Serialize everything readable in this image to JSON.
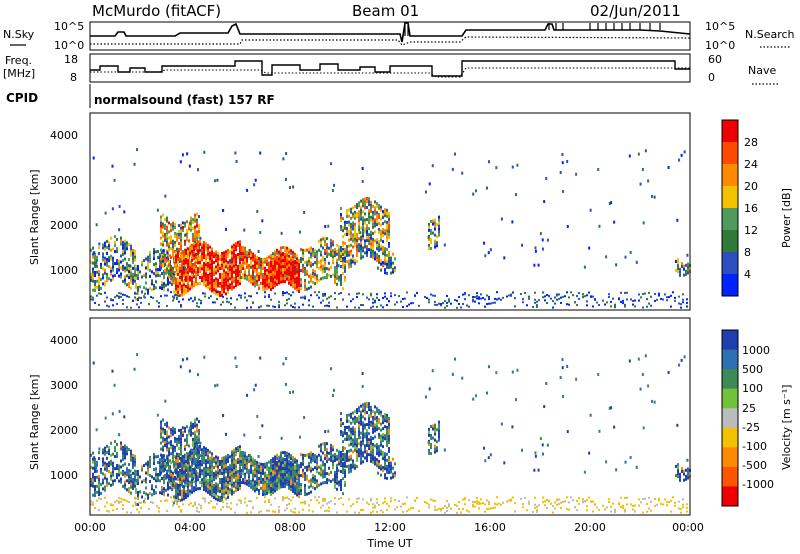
{
  "header": {
    "station": "McMurdo (fitACF)",
    "beam": "Beam 01",
    "date": "02/Jun/2011"
  },
  "noise_panel": {
    "left_label": "N.Sky",
    "right_label": "N.Search",
    "left_ticks": [
      "10^5",
      "10^0"
    ],
    "right_ticks": [
      "10^5",
      "10^0"
    ]
  },
  "freq_panel": {
    "left_label_1": "Freq.",
    "left_label_2": "[MHz]",
    "right_label": "Nave",
    "left_ticks": [
      "18",
      "8"
    ],
    "right_ticks": [
      "60",
      "0"
    ]
  },
  "cpid": {
    "label": "CPID",
    "value": "normalsound (fast) 157 RF"
  },
  "colors": {
    "power_scale": [
      "#0022ff",
      "#2b4fc0",
      "#2f7a3a",
      "#4f9a5f",
      "#f2c200",
      "#ff8a00",
      "#ff4a00",
      "#ee0000"
    ],
    "velocity_scale": [
      "#1f3fb0",
      "#2d6fb0",
      "#3d8a55",
      "#6fc23a",
      "#bbbbbb",
      "#f2c200",
      "#ff8a00",
      "#ff5500",
      "#ee0000"
    ]
  },
  "chart_data": [
    {
      "type": "heatmap",
      "title": "Power",
      "ylabel": "Slant Range [km]",
      "yticks": [
        "4000",
        "3000",
        "2000",
        "1000"
      ],
      "ylim": [
        180,
        4600
      ],
      "colorbar_label": "Power [dB]",
      "colorbar_ticks": [
        "28",
        "24",
        "20",
        "16",
        "12",
        "8",
        "4"
      ],
      "colorbar_range": [
        0,
        32
      ]
    },
    {
      "type": "heatmap",
      "title": "Velocity",
      "ylabel": "Slant Range [km]",
      "yticks": [
        "4000",
        "3000",
        "2000",
        "1000"
      ],
      "ylim": [
        180,
        4600
      ],
      "colorbar_label": "Velocity [m s⁻¹]",
      "colorbar_ticks": [
        "1000",
        "500",
        "100",
        "25",
        "-25",
        "-100",
        "-500",
        "-1000"
      ],
      "xlabel": "Time UT",
      "xticks": [
        "00:00",
        "04:00",
        "08:00",
        "12:00",
        "16:00",
        "20:00",
        "00:00"
      ]
    }
  ]
}
